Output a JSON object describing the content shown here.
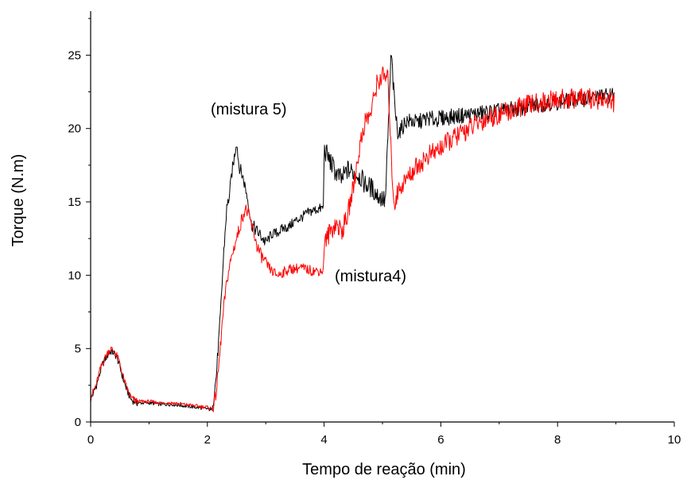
{
  "chart_data": {
    "type": "line",
    "title": "",
    "xlabel": "Tempo de reação (min)",
    "ylabel": "Torque (N.m)",
    "xlim": [
      0,
      10
    ],
    "ylim": [
      0,
      28
    ],
    "x_ticks": [
      0,
      2,
      4,
      6,
      8,
      10
    ],
    "y_ticks": [
      0,
      5,
      10,
      15,
      20,
      25
    ],
    "grid": false,
    "legend": "none",
    "annotations": [
      {
        "text": "(mistura 5)",
        "series_index": 0
      },
      {
        "text": "(mistura4)",
        "series_index": 1
      }
    ],
    "series": [
      {
        "color": "#000000",
        "points": [
          [
            0,
            1.5
          ],
          [
            0.05,
            2.0
          ],
          [
            0.1,
            2.5
          ],
          [
            0.15,
            3.2
          ],
          [
            0.2,
            3.9
          ],
          [
            0.25,
            4.3
          ],
          [
            0.3,
            4.6
          ],
          [
            0.35,
            4.8
          ],
          [
            0.4,
            4.7
          ],
          [
            0.45,
            4.4
          ],
          [
            0.5,
            3.8
          ],
          [
            0.55,
            3.0
          ],
          [
            0.6,
            2.4
          ],
          [
            0.65,
            1.9
          ],
          [
            0.7,
            1.5
          ],
          [
            0.8,
            1.3
          ],
          [
            1.0,
            1.3
          ],
          [
            1.2,
            1.2
          ],
          [
            1.4,
            1.2
          ],
          [
            1.6,
            1.1
          ],
          [
            1.8,
            1.0
          ],
          [
            2.0,
            0.9
          ],
          [
            2.08,
            0.8
          ],
          [
            2.15,
            3.0
          ],
          [
            2.22,
            7.0
          ],
          [
            2.28,
            11.5
          ],
          [
            2.33,
            14.5
          ],
          [
            2.38,
            15.5
          ],
          [
            2.42,
            17.0
          ],
          [
            2.46,
            18.0
          ],
          [
            2.5,
            19.2
          ],
          [
            2.54,
            17.5
          ],
          [
            2.6,
            16.8
          ],
          [
            2.65,
            16.0
          ],
          [
            2.7,
            15.0
          ],
          [
            2.75,
            13.5
          ],
          [
            2.85,
            13.0
          ],
          [
            2.95,
            12.5
          ],
          [
            3.0,
            12.2
          ],
          [
            3.1,
            12.8
          ],
          [
            3.2,
            12.9
          ],
          [
            3.3,
            13.2
          ],
          [
            3.4,
            13.3
          ],
          [
            3.5,
            13.7
          ],
          [
            3.6,
            13.9
          ],
          [
            3.7,
            14.2
          ],
          [
            3.8,
            14.4
          ],
          [
            3.9,
            14.5
          ],
          [
            3.99,
            14.6
          ],
          [
            4.0,
            18.6
          ],
          [
            4.05,
            18.2
          ],
          [
            4.1,
            17.8
          ],
          [
            4.2,
            17.0
          ],
          [
            4.3,
            16.5
          ],
          [
            4.4,
            17.2
          ],
          [
            4.5,
            17.0
          ],
          [
            4.6,
            16.8
          ],
          [
            4.7,
            16.2
          ],
          [
            4.8,
            16.0
          ],
          [
            4.9,
            15.5
          ],
          [
            5.0,
            15.2
          ],
          [
            5.05,
            15.0
          ],
          [
            5.1,
            20.0
          ],
          [
            5.15,
            25.2
          ],
          [
            5.2,
            22.0
          ],
          [
            5.25,
            20.0
          ],
          [
            5.3,
            19.8
          ],
          [
            5.4,
            20.5
          ],
          [
            5.5,
            20.5
          ],
          [
            5.6,
            20.4
          ],
          [
            5.7,
            20.6
          ],
          [
            5.8,
            20.7
          ],
          [
            5.9,
            20.6
          ],
          [
            6.0,
            20.7
          ],
          [
            6.2,
            20.8
          ],
          [
            6.4,
            20.9
          ],
          [
            6.6,
            21.0
          ],
          [
            6.8,
            21.1
          ],
          [
            7.0,
            21.2
          ],
          [
            7.2,
            21.3
          ],
          [
            7.4,
            21.4
          ],
          [
            7.6,
            21.6
          ],
          [
            7.8,
            21.7
          ],
          [
            8.0,
            21.8
          ],
          [
            8.2,
            21.9
          ],
          [
            8.4,
            22.0
          ],
          [
            8.6,
            22.1
          ],
          [
            8.8,
            22.2
          ],
          [
            8.97,
            22.3
          ]
        ]
      },
      {
        "color": "#ff0000",
        "points": [
          [
            0,
            1.8
          ],
          [
            0.05,
            2.1
          ],
          [
            0.1,
            2.6
          ],
          [
            0.15,
            3.4
          ],
          [
            0.2,
            4.0
          ],
          [
            0.25,
            4.4
          ],
          [
            0.3,
            4.8
          ],
          [
            0.35,
            5.0
          ],
          [
            0.4,
            4.8
          ],
          [
            0.45,
            4.5
          ],
          [
            0.5,
            4.0
          ],
          [
            0.55,
            3.2
          ],
          [
            0.6,
            2.5
          ],
          [
            0.65,
            2.0
          ],
          [
            0.7,
            1.6
          ],
          [
            0.8,
            1.4
          ],
          [
            1.0,
            1.4
          ],
          [
            1.2,
            1.3
          ],
          [
            1.4,
            1.3
          ],
          [
            1.6,
            1.2
          ],
          [
            1.8,
            1.1
          ],
          [
            2.0,
            1.0
          ],
          [
            2.1,
            0.9
          ],
          [
            2.15,
            2.0
          ],
          [
            2.2,
            4.0
          ],
          [
            2.25,
            6.5
          ],
          [
            2.3,
            8.5
          ],
          [
            2.35,
            10.0
          ],
          [
            2.4,
            11.0
          ],
          [
            2.45,
            11.8
          ],
          [
            2.5,
            12.5
          ],
          [
            2.55,
            13.2
          ],
          [
            2.6,
            14.0
          ],
          [
            2.65,
            14.5
          ],
          [
            2.7,
            14.2
          ],
          [
            2.75,
            13.5
          ],
          [
            2.8,
            12.8
          ],
          [
            2.85,
            12.0
          ],
          [
            2.9,
            11.5
          ],
          [
            3.0,
            10.8
          ],
          [
            3.1,
            10.3
          ],
          [
            3.2,
            10.0
          ],
          [
            3.4,
            10.4
          ],
          [
            3.6,
            10.5
          ],
          [
            3.8,
            10.3
          ],
          [
            3.99,
            10.3
          ],
          [
            4.0,
            12.2
          ],
          [
            4.05,
            12.5
          ],
          [
            4.1,
            13.0
          ],
          [
            4.2,
            13.5
          ],
          [
            4.3,
            13.0
          ],
          [
            4.4,
            14.0
          ],
          [
            4.5,
            16.0
          ],
          [
            4.6,
            18.5
          ],
          [
            4.7,
            20.5
          ],
          [
            4.8,
            21.0
          ],
          [
            4.85,
            22.0
          ],
          [
            4.9,
            23.0
          ],
          [
            5.0,
            23.6
          ],
          [
            5.1,
            23.3
          ],
          [
            5.15,
            18.0
          ],
          [
            5.2,
            14.8
          ],
          [
            5.25,
            15.5
          ],
          [
            5.3,
            16.0
          ],
          [
            5.4,
            16.5
          ],
          [
            5.5,
            17.0
          ],
          [
            5.6,
            17.5
          ],
          [
            5.7,
            17.8
          ],
          [
            5.8,
            18.2
          ],
          [
            5.9,
            18.4
          ],
          [
            6.0,
            18.7
          ],
          [
            6.2,
            19.3
          ],
          [
            6.4,
            19.8
          ],
          [
            6.6,
            20.3
          ],
          [
            6.8,
            20.7
          ],
          [
            7.0,
            21.0
          ],
          [
            7.2,
            21.2
          ],
          [
            7.4,
            21.5
          ],
          [
            7.6,
            21.7
          ],
          [
            7.8,
            21.8
          ],
          [
            8.0,
            22.0
          ],
          [
            8.2,
            22.0
          ],
          [
            8.4,
            22.1
          ],
          [
            8.6,
            22.0
          ],
          [
            8.8,
            22.0
          ],
          [
            8.97,
            21.8
          ]
        ]
      }
    ]
  }
}
